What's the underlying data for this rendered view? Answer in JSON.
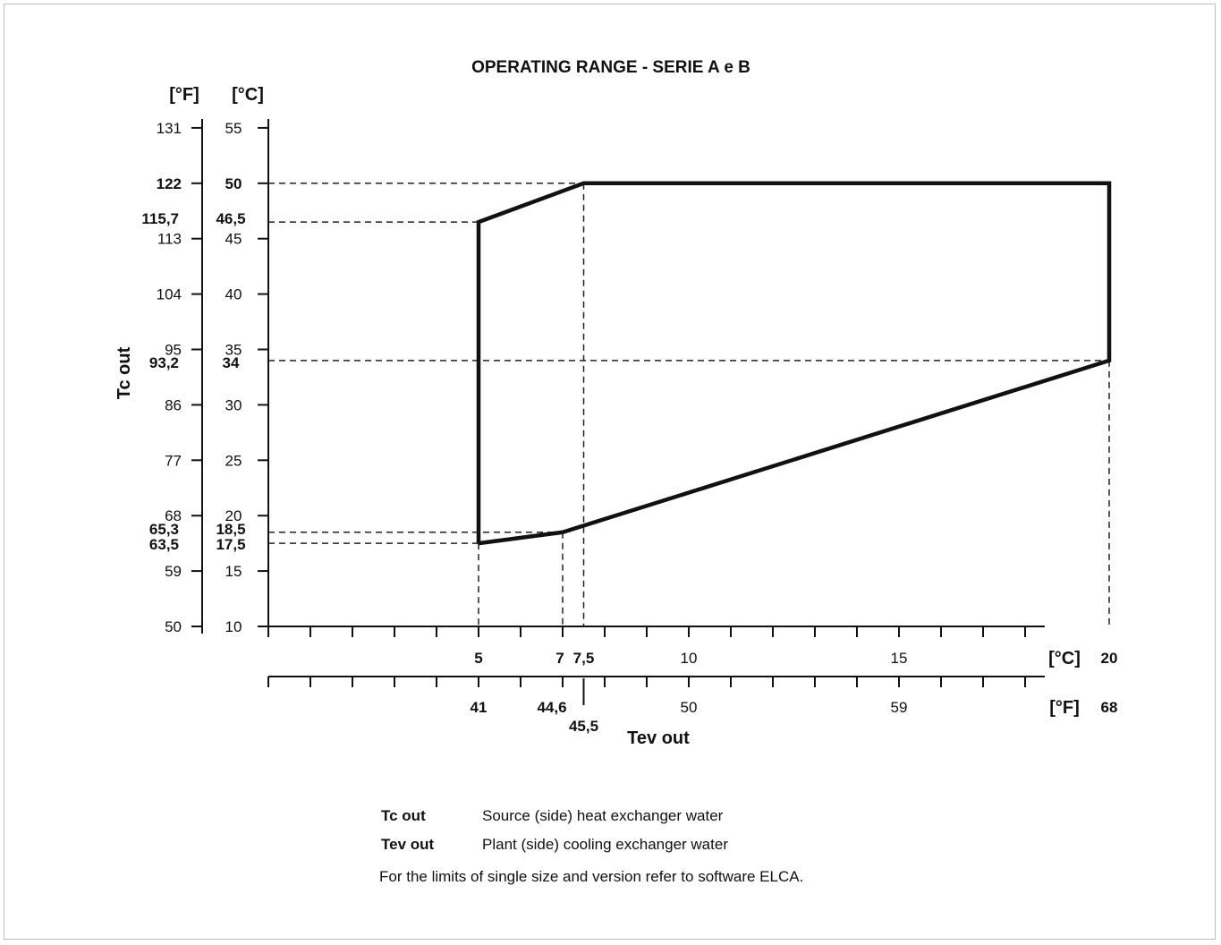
{
  "chart_data": {
    "type": "line",
    "title": "OPERATING RANGE - SERIE A e B",
    "xlabel": "Tev out",
    "ylabel": "Tc out",
    "x_unit_primary": "[°C]",
    "x_unit_secondary": "[°F]",
    "y_unit_primary": "[°C]",
    "y_unit_secondary": "[°F]",
    "xlim": [
      0,
      22.5
    ],
    "ylim": [
      10,
      57
    ],
    "x_minor_step": 1,
    "y_step": 5,
    "series": [
      {
        "x": [
          5,
          5,
          7.5,
          20,
          20,
          7,
          5
        ],
        "y": [
          17.5,
          46.5,
          50,
          50,
          34,
          18.5,
          17.5
        ]
      }
    ],
    "y_ticks_c": [
      {
        "value": 10,
        "c": "10",
        "f": "50",
        "bold": false
      },
      {
        "value": 15,
        "c": "15",
        "f": "59",
        "bold": false
      },
      {
        "value": 20,
        "c": "20",
        "f": "68",
        "bold": false
      },
      {
        "value": 25,
        "c": "25",
        "f": "77",
        "bold": false
      },
      {
        "value": 30,
        "c": "30",
        "f": "86",
        "bold": false
      },
      {
        "value": 35,
        "c": "35",
        "f": "95",
        "bold": false
      },
      {
        "value": 40,
        "c": "40",
        "f": "104",
        "bold": false
      },
      {
        "value": 45,
        "c": "45",
        "f": "113",
        "bold": false
      },
      {
        "value": 50,
        "c": "50",
        "f": "122",
        "bold": true
      },
      {
        "value": 55,
        "c": "55",
        "f": "131",
        "bold": false
      }
    ],
    "y_special": [
      {
        "value": 46.5,
        "c": "46,5",
        "f": "115,7"
      },
      {
        "value": 34,
        "c": "34",
        "f": "93,2"
      },
      {
        "value": 18.5,
        "c": "18,5",
        "f": "65,3"
      },
      {
        "value": 17.5,
        "c": "17,5",
        "f": "63,5"
      }
    ],
    "x_labels_c": [
      {
        "value": 5,
        "label": "5",
        "bold": true
      },
      {
        "value": 7,
        "label": "7",
        "bold": true
      },
      {
        "value": 7.5,
        "label": "7,5",
        "bold": true
      },
      {
        "value": 10,
        "label": "10",
        "bold": false
      },
      {
        "value": 15,
        "label": "15",
        "bold": false
      },
      {
        "value": 20,
        "label": "20",
        "bold": true
      }
    ],
    "x_labels_f": [
      {
        "value": 5,
        "label": "41",
        "bold": true
      },
      {
        "value": 7,
        "label": "44,6",
        "bold": true
      },
      {
        "value": 7.5,
        "label": "45,5",
        "bold": true
      },
      {
        "value": 10,
        "label": "50",
        "bold": false
      },
      {
        "value": 15,
        "label": "59",
        "bold": false
      },
      {
        "value": 20,
        "label": "68",
        "bold": true
      }
    ],
    "guides": [
      {
        "type": "h",
        "y": 50,
        "x_to": 7.5
      },
      {
        "type": "h",
        "y": 46.5,
        "x_to": 5
      },
      {
        "type": "h",
        "y": 34,
        "x_to": 20
      },
      {
        "type": "h",
        "y": 18.5,
        "x_to": 7
      },
      {
        "type": "h",
        "y": 17.5,
        "x_to": 5
      },
      {
        "type": "v",
        "x": 5,
        "y_from": 17.5
      },
      {
        "type": "v",
        "x": 7,
        "y_from": 18.5
      },
      {
        "type": "v",
        "x": 7.5,
        "y_from": 50
      },
      {
        "type": "v",
        "x": 20,
        "y_from": 34
      }
    ]
  },
  "legend": {
    "rows": [
      {
        "term": "Tc out",
        "desc": "Source (side) heat exchanger water"
      },
      {
        "term": "Tev out",
        "desc": "Plant (side) cooling exchanger water"
      }
    ],
    "note": "For the limits of single size and version refer to software ELCA."
  }
}
